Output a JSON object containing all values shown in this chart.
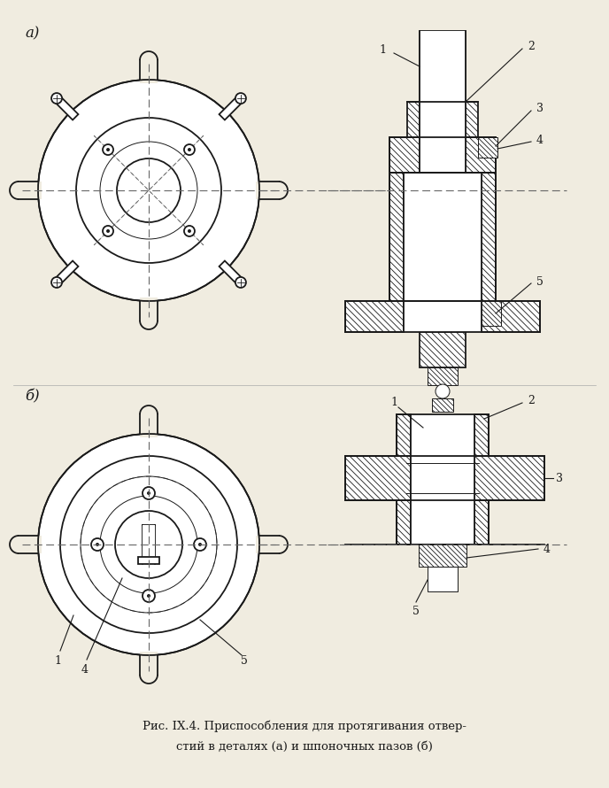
{
  "bg_color": "#f0ece0",
  "line_color": "#1a1a1a",
  "caption_line1": "Рис. IX.4. Приспособления для протягивания отвер-",
  "caption_line2": "стий в деталях (а) и шпоночных пазов (б)",
  "label_a": "а)",
  "label_b": "б)",
  "fig_width": 6.88,
  "fig_height": 8.9
}
